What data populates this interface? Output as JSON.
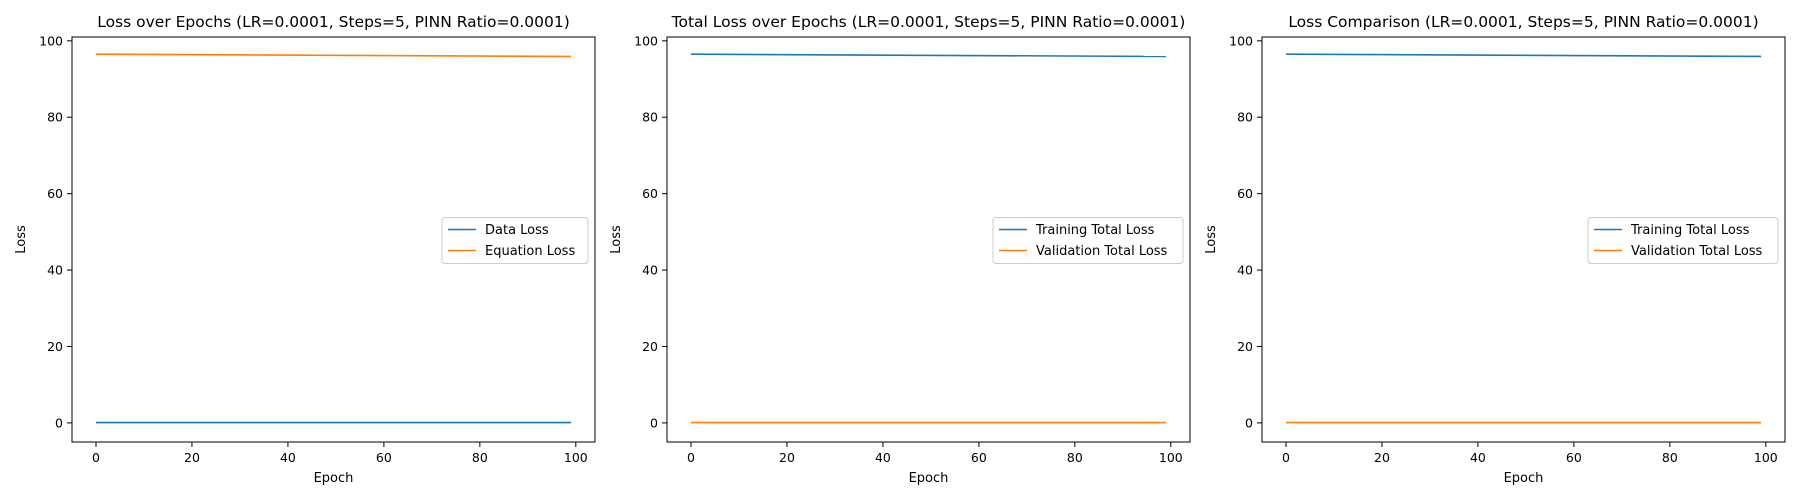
{
  "chart_data": [
    {
      "type": "line",
      "title": "Loss over Epochs (LR=0.0001, Steps=5, PINN Ratio=0.0001)",
      "xlabel": "Epoch",
      "ylabel": "Loss",
      "xlim": [
        -5,
        104
      ],
      "ylim": [
        -5,
        101
      ],
      "xticks": [
        0,
        20,
        40,
        60,
        80,
        100
      ],
      "yticks": [
        0,
        20,
        40,
        60,
        80,
        100
      ],
      "grid": false,
      "legend_position": "center-right",
      "series": [
        {
          "name": "Data Loss",
          "color": "#1f77b4",
          "x": [
            0,
            99
          ],
          "y": [
            0.1,
            0.1
          ]
        },
        {
          "name": "Equation Loss",
          "color": "#ff7f0e",
          "x": [
            0,
            99
          ],
          "y": [
            96.5,
            95.9
          ]
        }
      ]
    },
    {
      "type": "line",
      "title": "Total Loss over Epochs (LR=0.0001, Steps=5, PINN Ratio=0.0001)",
      "xlabel": "Epoch",
      "ylabel": "Loss",
      "xlim": [
        -5,
        104
      ],
      "ylim": [
        -5,
        101
      ],
      "xticks": [
        0,
        20,
        40,
        60,
        80,
        100
      ],
      "yticks": [
        0,
        20,
        40,
        60,
        80,
        100
      ],
      "grid": false,
      "legend_position": "center-right",
      "series": [
        {
          "name": "Training Total Loss",
          "color": "#1f77b4",
          "x": [
            0,
            99
          ],
          "y": [
            96.5,
            95.9
          ]
        },
        {
          "name": "Validation Total Loss",
          "color": "#ff7f0e",
          "x": [
            0,
            99
          ],
          "y": [
            0.1,
            0.1
          ]
        }
      ]
    },
    {
      "type": "line",
      "title": "Loss Comparison (LR=0.0001, Steps=5, PINN Ratio=0.0001)",
      "xlabel": "Epoch",
      "ylabel": "Loss",
      "xlim": [
        -5,
        104
      ],
      "ylim": [
        -5,
        101
      ],
      "xticks": [
        0,
        20,
        40,
        60,
        80,
        100
      ],
      "yticks": [
        0,
        20,
        40,
        60,
        80,
        100
      ],
      "grid": false,
      "legend_position": "center-right",
      "series": [
        {
          "name": "Training Total Loss",
          "color": "#1f77b4",
          "x": [
            0,
            99
          ],
          "y": [
            96.5,
            95.9
          ]
        },
        {
          "name": "Validation Total Loss",
          "color": "#ff7f0e",
          "x": [
            0,
            99
          ],
          "y": [
            0.1,
            0.1
          ]
        }
      ]
    }
  ]
}
